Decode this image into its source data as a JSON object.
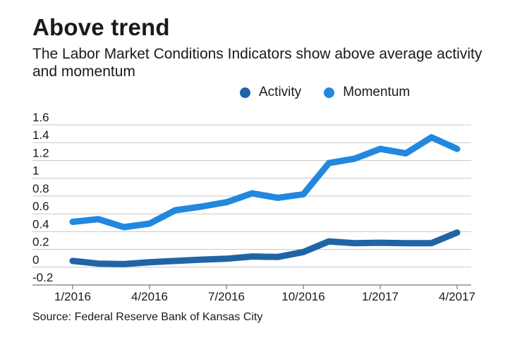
{
  "title": "Above trend",
  "subtitle": "The Labor Market Conditions Indicators show above average activity and momentum",
  "source": "Source: Federal Reserve Bank of Kansas City",
  "legend": [
    {
      "name": "Activity",
      "color": "#1f65a6"
    },
    {
      "name": "Momentum",
      "color": "#2288dd"
    }
  ],
  "chart_data": {
    "type": "line",
    "title": "Above trend",
    "xlabel": "",
    "ylabel": "",
    "ylim": [
      -0.2,
      1.6
    ],
    "yticks": [
      "1.6",
      "1.4",
      "1.2",
      "1",
      "0.8",
      "0.6",
      "0.4",
      "0.2",
      "0",
      "-0.2"
    ],
    "ytick_values": [
      1.6,
      1.4,
      1.2,
      1.0,
      0.8,
      0.6,
      0.4,
      0.2,
      0.0,
      -0.2
    ],
    "xtick_labels": [
      "1/2016",
      "4/2016",
      "7/2016",
      "10/2016",
      "1/2017",
      "4/2017"
    ],
    "xtick_index": [
      0,
      3,
      6,
      9,
      12,
      15
    ],
    "grid": true,
    "series": [
      {
        "name": "Activity",
        "color": "#1f65a6",
        "values": [
          0.07,
          0.04,
          0.035,
          0.055,
          0.07,
          0.085,
          0.095,
          0.12,
          0.115,
          0.17,
          0.29,
          0.27,
          0.275,
          0.27,
          0.27,
          0.39
        ]
      },
      {
        "name": "Momentum",
        "color": "#2288dd",
        "values": [
          0.51,
          0.54,
          0.45,
          0.49,
          0.64,
          0.68,
          0.73,
          0.83,
          0.78,
          0.82,
          1.17,
          1.22,
          1.33,
          1.28,
          1.46,
          1.33
        ]
      }
    ]
  }
}
